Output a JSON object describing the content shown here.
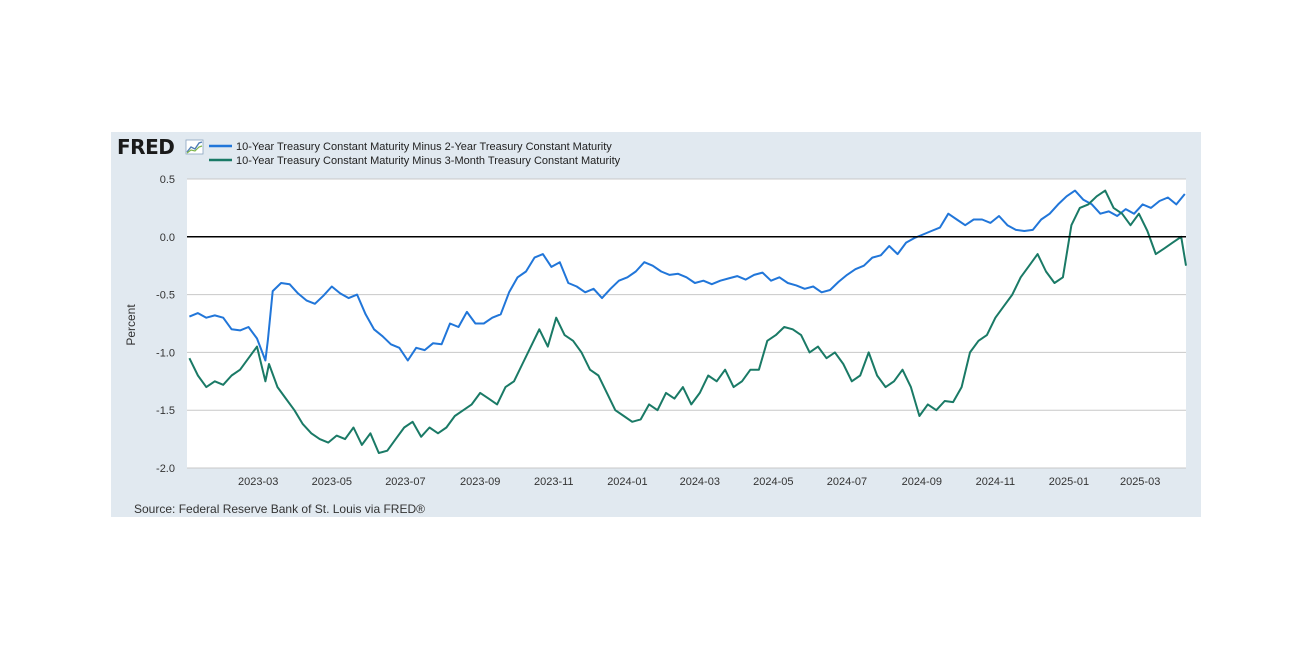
{
  "brand": {
    "logo_text": "FRED"
  },
  "source_note": "Source: Federal Reserve Bank of St. Louis via FRED®",
  "chart_data": {
    "type": "line",
    "xlabel": "",
    "ylabel": "Percent",
    "ylim": [
      -2.0,
      0.5
    ],
    "xlim": [
      "2023-01-01",
      "2025-04-08"
    ],
    "y_ticks": [
      0.5,
      0.0,
      -0.5,
      -1.0,
      -1.5,
      -2.0
    ],
    "y_tick_labels": [
      "0.5",
      "0.0",
      "-0.5",
      "-1.0",
      "-1.5",
      "-2.0"
    ],
    "x_ticks": [
      "2023-03-01",
      "2023-05-01",
      "2023-07-01",
      "2023-09-01",
      "2023-11-01",
      "2024-01-01",
      "2024-03-01",
      "2024-05-01",
      "2024-07-01",
      "2024-09-01",
      "2024-11-01",
      "2025-01-01",
      "2025-03-01"
    ],
    "x_tick_labels": [
      "2023-03",
      "2023-05",
      "2023-07",
      "2023-09",
      "2023-11",
      "2024-01",
      "2024-03",
      "2024-05",
      "2024-07",
      "2024-09",
      "2024-11",
      "2025-01",
      "2025-03"
    ],
    "grid": true,
    "zero_line": true,
    "legend_position": "top-left",
    "colors": {
      "panel": "#e1e9f0",
      "plot": "#ffffff",
      "grid": "#c8c8c8",
      "zero": "#000000"
    },
    "series": [
      {
        "name": "10-Year Treasury Constant Maturity Minus 2-Year Treasury Constant Maturity",
        "color": "#2176d9",
        "x": [
          "2023-01-03",
          "2023-01-10",
          "2023-01-17",
          "2023-01-24",
          "2023-01-31",
          "2023-02-07",
          "2023-02-14",
          "2023-02-21",
          "2023-02-28",
          "2023-03-07",
          "2023-03-09",
          "2023-03-13",
          "2023-03-20",
          "2023-03-27",
          "2023-04-03",
          "2023-04-10",
          "2023-04-17",
          "2023-04-24",
          "2023-05-01",
          "2023-05-08",
          "2023-05-15",
          "2023-05-22",
          "2023-05-29",
          "2023-06-05",
          "2023-06-12",
          "2023-06-19",
          "2023-06-26",
          "2023-07-03",
          "2023-07-10",
          "2023-07-17",
          "2023-07-24",
          "2023-07-31",
          "2023-08-07",
          "2023-08-14",
          "2023-08-21",
          "2023-08-28",
          "2023-09-04",
          "2023-09-11",
          "2023-09-18",
          "2023-09-25",
          "2023-10-02",
          "2023-10-09",
          "2023-10-16",
          "2023-10-23",
          "2023-10-30",
          "2023-11-06",
          "2023-11-13",
          "2023-11-20",
          "2023-11-27",
          "2023-12-04",
          "2023-12-11",
          "2023-12-18",
          "2023-12-25",
          "2024-01-01",
          "2024-01-08",
          "2024-01-15",
          "2024-01-22",
          "2024-01-29",
          "2024-02-05",
          "2024-02-12",
          "2024-02-19",
          "2024-02-26",
          "2024-03-04",
          "2024-03-11",
          "2024-03-18",
          "2024-03-25",
          "2024-04-01",
          "2024-04-08",
          "2024-04-15",
          "2024-04-22",
          "2024-04-29",
          "2024-05-06",
          "2024-05-13",
          "2024-05-20",
          "2024-05-27",
          "2024-06-03",
          "2024-06-10",
          "2024-06-17",
          "2024-06-24",
          "2024-07-01",
          "2024-07-08",
          "2024-07-15",
          "2024-07-22",
          "2024-07-29",
          "2024-08-05",
          "2024-08-12",
          "2024-08-19",
          "2024-08-26",
          "2024-09-02",
          "2024-09-09",
          "2024-09-16",
          "2024-09-23",
          "2024-09-30",
          "2024-10-07",
          "2024-10-14",
          "2024-10-21",
          "2024-10-28",
          "2024-11-04",
          "2024-11-11",
          "2024-11-18",
          "2024-11-25",
          "2024-12-02",
          "2024-12-09",
          "2024-12-16",
          "2024-12-23",
          "2024-12-30",
          "2025-01-06",
          "2025-01-13",
          "2025-01-20",
          "2025-01-27",
          "2025-02-03",
          "2025-02-10",
          "2025-02-17",
          "2025-02-24",
          "2025-03-03",
          "2025-03-10",
          "2025-03-17",
          "2025-03-24",
          "2025-03-31",
          "2025-04-07"
        ],
        "y": [
          -0.69,
          -0.66,
          -0.7,
          -0.68,
          -0.7,
          -0.8,
          -0.81,
          -0.78,
          -0.88,
          -1.07,
          -0.9,
          -0.47,
          -0.4,
          -0.41,
          -0.49,
          -0.55,
          -0.58,
          -0.51,
          -0.43,
          -0.49,
          -0.53,
          -0.5,
          -0.67,
          -0.8,
          -0.86,
          -0.93,
          -0.96,
          -1.07,
          -0.96,
          -0.98,
          -0.92,
          -0.93,
          -0.75,
          -0.78,
          -0.65,
          -0.75,
          -0.75,
          -0.7,
          -0.67,
          -0.48,
          -0.35,
          -0.3,
          -0.18,
          -0.15,
          -0.26,
          -0.22,
          -0.4,
          -0.43,
          -0.48,
          -0.45,
          -0.53,
          -0.45,
          -0.38,
          -0.35,
          -0.3,
          -0.22,
          -0.25,
          -0.3,
          -0.33,
          -0.32,
          -0.35,
          -0.4,
          -0.38,
          -0.41,
          -0.38,
          -0.36,
          -0.34,
          -0.37,
          -0.33,
          -0.31,
          -0.38,
          -0.35,
          -0.4,
          -0.42,
          -0.45,
          -0.43,
          -0.48,
          -0.46,
          -0.39,
          -0.33,
          -0.28,
          -0.25,
          -0.18,
          -0.16,
          -0.08,
          -0.15,
          -0.05,
          -0.01,
          0.02,
          0.05,
          0.08,
          0.2,
          0.15,
          0.1,
          0.15,
          0.15,
          0.12,
          0.18,
          0.1,
          0.06,
          0.05,
          0.06,
          0.15,
          0.2,
          0.28,
          0.35,
          0.4,
          0.32,
          0.28,
          0.2,
          0.22,
          0.18,
          0.24,
          0.2,
          0.28,
          0.25,
          0.31,
          0.34,
          0.28,
          0.37
        ]
      },
      {
        "name": "10-Year Treasury Constant Maturity Minus 3-Month Treasury Constant Maturity",
        "color": "#1a7a66",
        "x": [
          "2023-01-03",
          "2023-01-10",
          "2023-01-17",
          "2023-01-24",
          "2023-01-31",
          "2023-02-07",
          "2023-02-14",
          "2023-02-21",
          "2023-02-28",
          "2023-03-07",
          "2023-03-10",
          "2023-03-17",
          "2023-03-24",
          "2023-03-31",
          "2023-04-07",
          "2023-04-14",
          "2023-04-21",
          "2023-04-28",
          "2023-05-05",
          "2023-05-12",
          "2023-05-19",
          "2023-05-26",
          "2023-06-02",
          "2023-06-09",
          "2023-06-16",
          "2023-06-23",
          "2023-06-30",
          "2023-07-07",
          "2023-07-14",
          "2023-07-21",
          "2023-07-28",
          "2023-08-04",
          "2023-08-11",
          "2023-08-18",
          "2023-08-25",
          "2023-09-01",
          "2023-09-08",
          "2023-09-15",
          "2023-09-22",
          "2023-09-29",
          "2023-10-06",
          "2023-10-13",
          "2023-10-20",
          "2023-10-27",
          "2023-11-03",
          "2023-11-10",
          "2023-11-17",
          "2023-11-24",
          "2023-12-01",
          "2023-12-08",
          "2023-12-15",
          "2023-12-22",
          "2023-12-29",
          "2024-01-05",
          "2024-01-12",
          "2024-01-19",
          "2024-01-26",
          "2024-02-02",
          "2024-02-09",
          "2024-02-16",
          "2024-02-23",
          "2024-03-01",
          "2024-03-08",
          "2024-03-15",
          "2024-03-22",
          "2024-03-29",
          "2024-04-05",
          "2024-04-12",
          "2024-04-19",
          "2024-04-26",
          "2024-05-03",
          "2024-05-10",
          "2024-05-17",
          "2024-05-24",
          "2024-05-31",
          "2024-06-07",
          "2024-06-14",
          "2024-06-21",
          "2024-06-28",
          "2024-07-05",
          "2024-07-12",
          "2024-07-19",
          "2024-07-26",
          "2024-08-02",
          "2024-08-09",
          "2024-08-16",
          "2024-08-23",
          "2024-08-30",
          "2024-09-06",
          "2024-09-13",
          "2024-09-20",
          "2024-09-27",
          "2024-10-04",
          "2024-10-11",
          "2024-10-18",
          "2024-10-25",
          "2024-11-01",
          "2024-11-08",
          "2024-11-15",
          "2024-11-22",
          "2024-11-29",
          "2024-12-06",
          "2024-12-13",
          "2024-12-20",
          "2024-12-27",
          "2025-01-03",
          "2025-01-10",
          "2025-01-17",
          "2025-01-24",
          "2025-01-31",
          "2025-02-07",
          "2025-02-14",
          "2025-02-21",
          "2025-02-28",
          "2025-03-07",
          "2025-03-14",
          "2025-03-21",
          "2025-03-28",
          "2025-04-04",
          "2025-04-08"
        ],
        "y": [
          -1.05,
          -1.2,
          -1.3,
          -1.25,
          -1.28,
          -1.2,
          -1.15,
          -1.05,
          -0.95,
          -1.25,
          -1.1,
          -1.3,
          -1.4,
          -1.5,
          -1.62,
          -1.7,
          -1.75,
          -1.78,
          -1.72,
          -1.75,
          -1.65,
          -1.8,
          -1.7,
          -1.87,
          -1.85,
          -1.75,
          -1.65,
          -1.6,
          -1.73,
          -1.65,
          -1.7,
          -1.65,
          -1.55,
          -1.5,
          -1.45,
          -1.35,
          -1.4,
          -1.45,
          -1.3,
          -1.25,
          -1.1,
          -0.95,
          -0.8,
          -0.95,
          -0.7,
          -0.85,
          -0.9,
          -1.0,
          -1.15,
          -1.2,
          -1.35,
          -1.5,
          -1.55,
          -1.6,
          -1.58,
          -1.45,
          -1.5,
          -1.35,
          -1.4,
          -1.3,
          -1.45,
          -1.35,
          -1.2,
          -1.25,
          -1.15,
          -1.3,
          -1.25,
          -1.15,
          -1.15,
          -0.9,
          -0.85,
          -0.78,
          -0.8,
          -0.85,
          -1.0,
          -0.95,
          -1.05,
          -1.0,
          -1.1,
          -1.25,
          -1.2,
          -1.0,
          -1.2,
          -1.3,
          -1.25,
          -1.15,
          -1.3,
          -1.55,
          -1.45,
          -1.5,
          -1.42,
          -1.43,
          -1.3,
          -1.0,
          -0.9,
          -0.85,
          -0.7,
          -0.6,
          -0.5,
          -0.35,
          -0.25,
          -0.15,
          -0.3,
          -0.4,
          -0.35,
          0.1,
          0.25,
          0.28,
          0.35,
          0.4,
          0.25,
          0.2,
          0.1,
          0.2,
          0.05,
          -0.15,
          -0.1,
          -0.05,
          0.0,
          -0.25
        ]
      }
    ]
  }
}
